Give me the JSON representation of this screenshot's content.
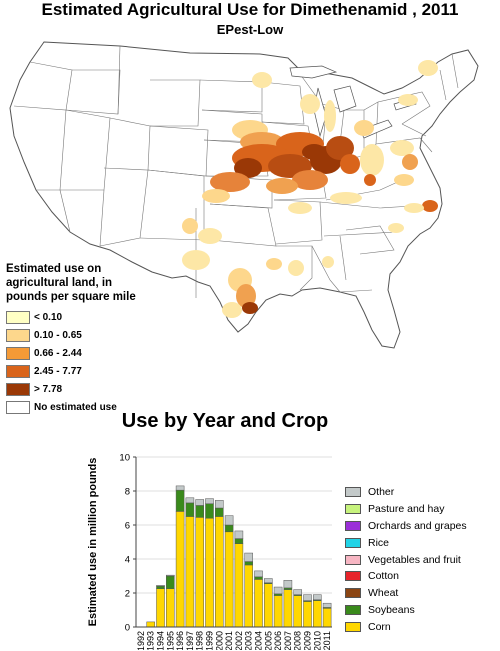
{
  "map": {
    "title": "Estimated Agricultural Use for Dimethenamid , 2011",
    "subtitle": "EPest-Low"
  },
  "map_legend": {
    "title_lines": [
      "Estimated use on",
      "agricultural land, in",
      "pounds per square mile"
    ],
    "items": [
      {
        "label": "< 0.10",
        "color": "#ffffc4"
      },
      {
        "label": "0.10 - 0.65",
        "color": "#fdd78c"
      },
      {
        "label": "0.66 - 2.44",
        "color": "#f59a36"
      },
      {
        "label": "2.45 - 7.77",
        "color": "#d9641b"
      },
      {
        "label": "> 7.78",
        "color": "#9a3806"
      },
      {
        "label": "No estimated use",
        "color": "#ffffff"
      }
    ]
  },
  "chart_title": "Use by Year and Crop",
  "chart_data": {
    "type": "bar",
    "stacked": true,
    "ylabel": "Estimated use in million pounds",
    "ylim": [
      0,
      10
    ],
    "yticks": [
      0,
      2,
      4,
      6,
      8,
      10
    ],
    "grid": true,
    "categories": [
      "1992",
      "1993",
      "1994",
      "1995",
      "1996",
      "1997",
      "1998",
      "1999",
      "2000",
      "2001",
      "2002",
      "2003",
      "2004",
      "2005",
      "2006",
      "2007",
      "2008",
      "2009",
      "2010",
      "2011"
    ],
    "series": [
      {
        "name": "Corn",
        "color": "#ffd700",
        "values": [
          0,
          0.3,
          2.25,
          2.25,
          6.8,
          6.5,
          6.45,
          6.4,
          6.5,
          5.6,
          4.9,
          3.65,
          2.8,
          2.55,
          1.85,
          2.2,
          1.85,
          1.5,
          1.55,
          1.1
        ]
      },
      {
        "name": "Soybeans",
        "color": "#3a8a1c",
        "values": [
          0,
          0,
          0.15,
          0.75,
          1.25,
          0.8,
          0.7,
          0.85,
          0.5,
          0.4,
          0.3,
          0.2,
          0.15,
          0.05,
          0.1,
          0.1,
          0.05,
          0.05,
          0.05,
          0.05
        ]
      },
      {
        "name": "Wheat",
        "color": "#8b4513",
        "values": [
          0,
          0,
          0,
          0,
          0,
          0,
          0,
          0,
          0,
          0,
          0,
          0,
          0,
          0,
          0,
          0,
          0,
          0,
          0,
          0
        ]
      },
      {
        "name": "Cotton",
        "color": "#e8242b",
        "values": [
          0,
          0,
          0,
          0,
          0,
          0,
          0,
          0,
          0,
          0,
          0,
          0,
          0,
          0,
          0,
          0,
          0,
          0,
          0,
          0
        ]
      },
      {
        "name": "Vegetables and fruit",
        "color": "#f7b6c3",
        "values": [
          0,
          0,
          0,
          0,
          0,
          0,
          0,
          0,
          0,
          0,
          0,
          0,
          0,
          0,
          0,
          0,
          0,
          0,
          0,
          0
        ]
      },
      {
        "name": "Rice",
        "color": "#22d3e6",
        "values": [
          0,
          0,
          0,
          0,
          0,
          0,
          0,
          0,
          0,
          0,
          0,
          0,
          0,
          0,
          0,
          0,
          0,
          0,
          0,
          0
        ]
      },
      {
        "name": "Orchards and grapes",
        "color": "#9b30d9",
        "values": [
          0,
          0,
          0,
          0,
          0,
          0,
          0,
          0,
          0,
          0,
          0,
          0,
          0,
          0,
          0,
          0,
          0,
          0,
          0,
          0
        ]
      },
      {
        "name": "Pasture and hay",
        "color": "#c7f37d",
        "values": [
          0,
          0,
          0,
          0,
          0,
          0,
          0,
          0,
          0,
          0,
          0,
          0,
          0,
          0,
          0,
          0,
          0,
          0,
          0,
          0
        ]
      },
      {
        "name": "Other",
        "color": "#c3c9c9",
        "values": [
          0,
          0,
          0.05,
          0.05,
          0.25,
          0.3,
          0.35,
          0.3,
          0.45,
          0.55,
          0.45,
          0.5,
          0.35,
          0.25,
          0.4,
          0.45,
          0.3,
          0.35,
          0.3,
          0.25
        ]
      }
    ]
  }
}
